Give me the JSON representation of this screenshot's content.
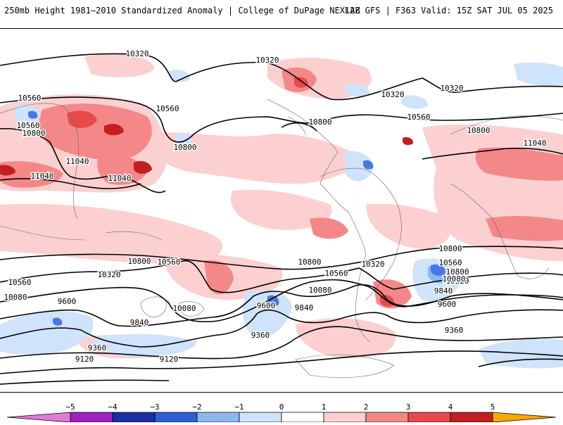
{
  "header": {
    "title_left": "250mb Height 1981–2010 Standardized Anomaly | College of DuPage NEXLAB",
    "title_right": "12Z GFS | F363 Valid: 15Z SAT JUL 05 2025"
  },
  "colors": {
    "anom_pos_1": "#fcd0d0",
    "anom_pos_2": "#f48888",
    "anom_pos_3": "#e84a4a",
    "anom_pos_4": "#c41e1e",
    "anom_neg_1": "#cfe3fb",
    "anom_neg_2": "#8cb8f0",
    "anom_neg_3": "#4a78e0",
    "contour": "#000000",
    "coast": "#666666"
  },
  "contour_labels": [
    {
      "text": "10320"
    },
    {
      "text": "10320"
    },
    {
      "text": "10320"
    },
    {
      "text": "10320"
    },
    {
      "text": "10320"
    },
    {
      "text": "10560"
    },
    {
      "text": "10560"
    },
    {
      "text": "10560"
    },
    {
      "text": "10560"
    },
    {
      "text": "10800"
    },
    {
      "text": "10800"
    },
    {
      "text": "10800"
    },
    {
      "text": "10800"
    },
    {
      "text": "10800"
    },
    {
      "text": "11040"
    },
    {
      "text": "11040"
    },
    {
      "text": "11040"
    },
    {
      "text": "11040"
    },
    {
      "text": "10560"
    },
    {
      "text": "10560"
    },
    {
      "text": "10560"
    },
    {
      "text": "10560"
    },
    {
      "text": "10800"
    },
    {
      "text": "10800"
    },
    {
      "text": "10800"
    },
    {
      "text": "10320"
    },
    {
      "text": "10320"
    },
    {
      "text": "10080"
    },
    {
      "text": "10080"
    },
    {
      "text": "10080"
    },
    {
      "text": "10080"
    },
    {
      "text": "9600"
    },
    {
      "text": "9600"
    },
    {
      "text": "9600"
    },
    {
      "text": "9840"
    },
    {
      "text": "9840"
    },
    {
      "text": "9840"
    },
    {
      "text": "9360"
    },
    {
      "text": "9360"
    },
    {
      "text": "9360"
    },
    {
      "text": "9120"
    },
    {
      "text": "9120"
    }
  ],
  "colorbar": {
    "ticks": [
      "−5",
      "−4",
      "−3",
      "−2",
      "−1",
      "0",
      "1",
      "2",
      "3",
      "4",
      "5"
    ],
    "segments": [
      {
        "color": "#e07cd8"
      },
      {
        "color": "#a020c0"
      },
      {
        "color": "#1a2ea0"
      },
      {
        "color": "#2f5fd8"
      },
      {
        "color": "#8cb8f0"
      },
      {
        "color": "#cfe3fb"
      },
      {
        "color": "#ffffff"
      },
      {
        "color": "#fcd0d0"
      },
      {
        "color": "#f48888"
      },
      {
        "color": "#e84a4a"
      },
      {
        "color": "#c41e1e"
      },
      {
        "color": "#f8a800"
      }
    ]
  }
}
